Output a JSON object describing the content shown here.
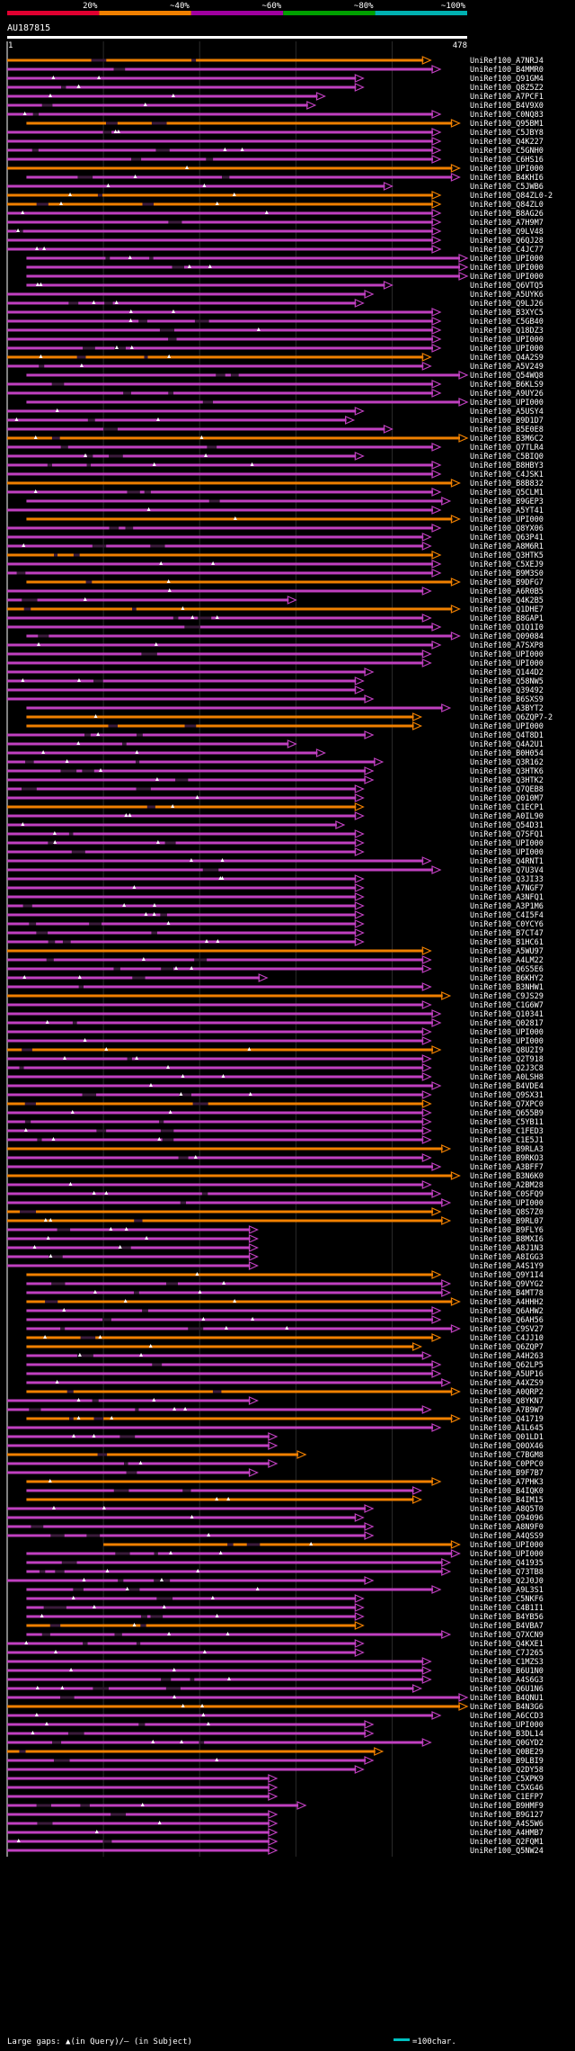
{
  "chart_data": {
    "type": "alignment-overview",
    "query_id": "AU187815",
    "query_start": "1",
    "query_end": "478",
    "query_length": 478,
    "identity_scale": {
      "ticks": [
        "20%",
        "~40%",
        "~60%",
        "~80%",
        "~100%"
      ],
      "colors": [
        "#e00030",
        "#f08000",
        "#a000a0",
        "#00a000",
        "#00b0b0"
      ]
    },
    "hit_colors": {
      "orange": "#f08000",
      "magenta": "#c040c0"
    },
    "legend": {
      "gap_text": "Large gaps: ▲(in Query)/– (in Subject)",
      "scale_text": "=100char."
    },
    "hits": [
      [
        "UniRef100_A7NRJ4",
        0,
        440,
        "o"
      ],
      [
        "UniRef100_B4MMR0",
        0,
        450,
        "m"
      ],
      [
        "UniRef100_Q91GM4",
        0,
        370,
        "m"
      ],
      [
        "UniRef100_Q8Z5Z2",
        0,
        370,
        "m"
      ],
      [
        "UniRef100_A7PCF1",
        0,
        330,
        "m"
      ],
      [
        "UniRef100_B4V9X0",
        0,
        320,
        "m"
      ],
      [
        "UniRef100_C0NQ83",
        0,
        450,
        "m"
      ],
      [
        "UniRef100_Q95BM1",
        20,
        470,
        "o"
      ],
      [
        "UniRef100_C5JBY8",
        0,
        450,
        "m"
      ],
      [
        "UniRef100_Q4K227",
        0,
        450,
        "m"
      ],
      [
        "UniRef100_C5GNH0",
        0,
        450,
        "m"
      ],
      [
        "UniRef100_C6HS16",
        0,
        450,
        "m"
      ],
      [
        "UniRef100_UPI000",
        0,
        470,
        "o"
      ],
      [
        "UniRef100_B4KHI6",
        20,
        470,
        "m"
      ],
      [
        "UniRef100_C5JWB6",
        0,
        400,
        "m"
      ],
      [
        "UniRef100_Q84ZL0-2",
        0,
        450,
        "o"
      ],
      [
        "UniRef100_Q84ZL0",
        0,
        450,
        "o"
      ],
      [
        "UniRef100_B8AG26",
        0,
        450,
        "m"
      ],
      [
        "UniRef100_A7H9M7",
        0,
        450,
        "m"
      ],
      [
        "UniRef100_Q9LV48",
        0,
        450,
        "m"
      ],
      [
        "UniRef100_Q6QJ28",
        0,
        450,
        "m"
      ],
      [
        "UniRef100_C4JC77",
        0,
        450,
        "m"
      ],
      [
        "UniRef100_UPI000",
        20,
        478,
        "m"
      ],
      [
        "UniRef100_UPI000",
        20,
        478,
        "m"
      ],
      [
        "UniRef100_UPI000",
        20,
        478,
        "m"
      ],
      [
        "UniRef100_Q6VTQ5",
        20,
        400,
        "m"
      ],
      [
        "UniRef100_A5UYK6",
        0,
        380,
        "m"
      ],
      [
        "UniRef100_Q9LJ26",
        0,
        370,
        "m"
      ],
      [
        "UniRef100_B3XYC5",
        0,
        450,
        "m"
      ],
      [
        "UniRef100_C5GB40",
        0,
        450,
        "m"
      ],
      [
        "UniRef100_Q18DZ3",
        0,
        450,
        "m"
      ],
      [
        "UniRef100_UPI000",
        0,
        450,
        "m"
      ],
      [
        "UniRef100_UPI000",
        0,
        450,
        "m"
      ],
      [
        "UniRef100_Q4A2S9",
        0,
        440,
        "o"
      ],
      [
        "UniRef100_A5V249",
        0,
        440,
        "m"
      ],
      [
        "UniRef100_Q54WQ8",
        20,
        478,
        "m"
      ],
      [
        "UniRef100_B6KLS9",
        0,
        450,
        "m"
      ],
      [
        "UniRef100_A9UY26",
        0,
        450,
        "m"
      ],
      [
        "UniRef100_UPI000",
        20,
        478,
        "m"
      ],
      [
        "UniRef100_A5USY4",
        0,
        370,
        "m"
      ],
      [
        "UniRef100_B9D1D7",
        0,
        360,
        "m"
      ],
      [
        "UniRef100_B5E0E8",
        0,
        400,
        "m"
      ],
      [
        "UniRef100_B3M6C2",
        0,
        478,
        "o"
      ],
      [
        "UniRef100_Q7TLR4",
        0,
        450,
        "m"
      ],
      [
        "UniRef100_C5BIQ0",
        0,
        370,
        "m"
      ],
      [
        "UniRef100_B8HBY3",
        0,
        450,
        "m"
      ],
      [
        "UniRef100_C4JSK1",
        0,
        450,
        "m"
      ],
      [
        "UniRef100_B8B832",
        0,
        470,
        "o"
      ],
      [
        "UniRef100_Q5CLM1",
        0,
        450,
        "m"
      ],
      [
        "UniRef100_B9GEP3",
        20,
        460,
        "m"
      ],
      [
        "UniRef100_A5YT41",
        0,
        450,
        "m"
      ],
      [
        "UniRef100_UPI000",
        20,
        470,
        "o"
      ],
      [
        "UniRef100_Q8YX06",
        0,
        450,
        "m"
      ],
      [
        "UniRef100_Q63P41",
        0,
        440,
        "m"
      ],
      [
        "UniRef100_A8M6R1",
        0,
        440,
        "m"
      ],
      [
        "UniRef100_Q3HTK5",
        0,
        450,
        "o"
      ],
      [
        "UniRef100_C5XEJ9",
        0,
        450,
        "m"
      ],
      [
        "UniRef100_B9M3S0",
        0,
        450,
        "m"
      ],
      [
        "UniRef100_B9DFG7",
        20,
        470,
        "o"
      ],
      [
        "UniRef100_A6R0B5",
        0,
        440,
        "m"
      ],
      [
        "UniRef100_Q4K2B5",
        0,
        300,
        "m"
      ],
      [
        "UniRef100_Q1DHE7",
        0,
        470,
        "o"
      ],
      [
        "UniRef100_B8GAP1",
        0,
        440,
        "m"
      ],
      [
        "UniRef100_Q1Q1I0",
        0,
        450,
        "m"
      ],
      [
        "UniRef100_Q09084",
        20,
        470,
        "m"
      ],
      [
        "UniRef100_A7SXP8",
        0,
        450,
        "m"
      ],
      [
        "UniRef100_UPI000",
        0,
        440,
        "m"
      ],
      [
        "UniRef100_UPI000",
        0,
        440,
        "m"
      ],
      [
        "UniRef100_Q144D2",
        0,
        380,
        "m"
      ],
      [
        "UniRef100_Q58NW5",
        0,
        370,
        "m"
      ],
      [
        "UniRef100_Q39492",
        0,
        370,
        "m"
      ],
      [
        "UniRef100_B6SXS9",
        0,
        380,
        "m"
      ],
      [
        "UniRef100_A3BYT2",
        20,
        460,
        "m"
      ],
      [
        "UniRef100_Q6ZQP7-2",
        20,
        430,
        "o"
      ],
      [
        "UniRef100_UPI000",
        20,
        430,
        "o"
      ],
      [
        "UniRef100_Q4T8D1",
        0,
        380,
        "m"
      ],
      [
        "UniRef100_Q4A2U1",
        0,
        300,
        "m"
      ],
      [
        "UniRef100_B0H054",
        0,
        330,
        "m"
      ],
      [
        "UniRef100_Q3R162",
        0,
        390,
        "m"
      ],
      [
        "UniRef100_Q3HTK6",
        0,
        380,
        "m"
      ],
      [
        "UniRef100_Q3HTK2",
        0,
        380,
        "m"
      ],
      [
        "UniRef100_Q7QEB8",
        0,
        370,
        "m"
      ],
      [
        "UniRef100_Q010M7",
        0,
        370,
        "m"
      ],
      [
        "UniRef100_C1ECP1",
        0,
        370,
        "o"
      ],
      [
        "UniRef100_A0IL90",
        0,
        370,
        "m"
      ],
      [
        "UniRef100_Q54D31",
        0,
        350,
        "m"
      ],
      [
        "UniRef100_Q7SFQ1",
        0,
        370,
        "m"
      ],
      [
        "UniRef100_UPI000",
        0,
        370,
        "m"
      ],
      [
        "UniRef100_UPI000",
        0,
        370,
        "m"
      ],
      [
        "UniRef100_Q4RNT1",
        0,
        440,
        "m"
      ],
      [
        "UniRef100_Q7U3V4",
        0,
        450,
        "m"
      ],
      [
        "UniRef100_Q3JI33",
        0,
        370,
        "m"
      ],
      [
        "UniRef100_A7NGF7",
        0,
        370,
        "m"
      ],
      [
        "UniRef100_A3NFQ1",
        0,
        370,
        "m"
      ],
      [
        "UniRef100_A3P1M6",
        0,
        370,
        "m"
      ],
      [
        "UniRef100_C4I5F4",
        0,
        370,
        "m"
      ],
      [
        "UniRef100_C0YCY6",
        0,
        370,
        "m"
      ],
      [
        "UniRef100_B7CT47",
        0,
        370,
        "m"
      ],
      [
        "UniRef100_B1HC61",
        0,
        370,
        "m"
      ],
      [
        "UniRef100_A5WU97",
        0,
        440,
        "o"
      ],
      [
        "UniRef100_A4LM22",
        0,
        440,
        "m"
      ],
      [
        "UniRef100_Q6S5E6",
        0,
        440,
        "m"
      ],
      [
        "UniRef100_B6KHY2",
        0,
        270,
        "m"
      ],
      [
        "UniRef100_B3NHW1",
        0,
        440,
        "m"
      ],
      [
        "UniRef100_C9JS29",
        0,
        460,
        "o"
      ],
      [
        "UniRef100_C1G6W7",
        0,
        440,
        "m"
      ],
      [
        "UniRef100_Q10341",
        0,
        450,
        "m"
      ],
      [
        "UniRef100_Q02817",
        0,
        450,
        "m"
      ],
      [
        "UniRef100_UPI000",
        0,
        440,
        "m"
      ],
      [
        "UniRef100_UPI000",
        0,
        440,
        "m"
      ],
      [
        "UniRef100_Q8U2I9",
        0,
        450,
        "o"
      ],
      [
        "UniRef100_Q2T918",
        0,
        440,
        "m"
      ],
      [
        "UniRef100_Q2J3C8",
        0,
        440,
        "m"
      ],
      [
        "UniRef100_A0LSH8",
        0,
        440,
        "m"
      ],
      [
        "UniRef100_B4VDE4",
        0,
        450,
        "m"
      ],
      [
        "UniRef100_Q9SX31",
        0,
        440,
        "m"
      ],
      [
        "UniRef100_Q7XPC0",
        0,
        440,
        "o"
      ],
      [
        "UniRef100_Q655B9",
        0,
        440,
        "m"
      ],
      [
        "UniRef100_C5YB11",
        0,
        440,
        "m"
      ],
      [
        "UniRef100_C1FED3",
        0,
        440,
        "m"
      ],
      [
        "UniRef100_C1E5J1",
        0,
        440,
        "m"
      ],
      [
        "UniRef100_B9RLA3",
        0,
        460,
        "o"
      ],
      [
        "UniRef100_B9RKO3",
        0,
        440,
        "m"
      ],
      [
        "UniRef100_A3BFF7",
        0,
        450,
        "m"
      ],
      [
        "UniRef100_B3N6K0",
        0,
        470,
        "o"
      ],
      [
        "UniRef100_A2BM28",
        0,
        440,
        "m"
      ],
      [
        "UniRef100_C0SFQ9",
        0,
        450,
        "m"
      ],
      [
        "UniRef100_UPI000",
        0,
        460,
        "m"
      ],
      [
        "UniRef100_Q8S7Z0",
        0,
        450,
        "o"
      ],
      [
        "UniRef100_B9RL07",
        0,
        460,
        "o"
      ],
      [
        "UniRef100_B9FLY6",
        0,
        260,
        "m"
      ],
      [
        "UniRef100_B8MXI6",
        0,
        260,
        "m"
      ],
      [
        "UniRef100_A8J1N3",
        0,
        260,
        "m"
      ],
      [
        "UniRef100_A8IGG3",
        0,
        260,
        "m"
      ],
      [
        "UniRef100_A4S1Y9",
        0,
        260,
        "m"
      ],
      [
        "UniRef100_Q9Y1I4",
        20,
        450,
        "o"
      ],
      [
        "UniRef100_Q9VYG2",
        20,
        460,
        "m"
      ],
      [
        "UniRef100_B4MT78",
        20,
        460,
        "m"
      ],
      [
        "UniRef100_A4HHH2",
        20,
        470,
        "o"
      ],
      [
        "UniRef100_Q6AHW2",
        20,
        450,
        "m"
      ],
      [
        "UniRef100_Q6AH56",
        20,
        450,
        "m"
      ],
      [
        "UniRef100_C9SV27",
        20,
        470,
        "m"
      ],
      [
        "UniRef100_C4JJ10",
        20,
        450,
        "o"
      ],
      [
        "UniRef100_Q6ZQP7",
        20,
        430,
        "o"
      ],
      [
        "UniRef100_A4H263",
        20,
        440,
        "m"
      ],
      [
        "UniRef100_Q62LP5",
        20,
        450,
        "m"
      ],
      [
        "UniRef100_A5UP16",
        20,
        450,
        "m"
      ],
      [
        "UniRef100_A4XZS9",
        20,
        460,
        "m"
      ],
      [
        "UniRef100_A0QRP2",
        20,
        470,
        "o"
      ],
      [
        "UniRef100_Q8YKN7",
        0,
        260,
        "m"
      ],
      [
        "UniRef100_A7B9W7",
        0,
        440,
        "m"
      ],
      [
        "UniRef100_Q41719",
        20,
        470,
        "o"
      ],
      [
        "UniRef100_A1L645",
        0,
        450,
        "m"
      ],
      [
        "UniRef100_Q01LD1",
        0,
        280,
        "m"
      ],
      [
        "UniRef100_Q0OX46",
        0,
        280,
        "m"
      ],
      [
        "UniRef100_C7BGM8",
        0,
        310,
        "o"
      ],
      [
        "UniRef100_C0PPC0",
        0,
        280,
        "m"
      ],
      [
        "UniRef100_B9F7B7",
        0,
        260,
        "m"
      ],
      [
        "UniRef100_A7PHK3",
        20,
        450,
        "o"
      ],
      [
        "UniRef100_B4IQK0",
        20,
        430,
        "m"
      ],
      [
        "UniRef100_B4IM15",
        20,
        430,
        "o"
      ],
      [
        "UniRef100_A8Q5T0",
        0,
        380,
        "m"
      ],
      [
        "UniRef100_Q94096",
        0,
        370,
        "m"
      ],
      [
        "UniRef100_A8N9F0",
        0,
        380,
        "m"
      ],
      [
        "UniRef100_A4QSS9",
        0,
        380,
        "m"
      ],
      [
        "UniRef100_UPI000",
        100,
        470,
        "o"
      ],
      [
        "UniRef100_UPI000",
        20,
        470,
        "m"
      ],
      [
        "UniRef100_Q41935",
        20,
        460,
        "m"
      ],
      [
        "UniRef100_Q73TB8",
        20,
        460,
        "m"
      ],
      [
        "UniRef100_Q2J0J0",
        0,
        380,
        "m"
      ],
      [
        "UniRef100_A9L3S1",
        20,
        450,
        "m"
      ],
      [
        "UniRef100_C5NKF6",
        20,
        370,
        "m"
      ],
      [
        "UniRef100_C4B1I1",
        20,
        370,
        "m"
      ],
      [
        "UniRef100_B4YB56",
        20,
        370,
        "m"
      ],
      [
        "UniRef100_B4VBA7",
        20,
        370,
        "o"
      ],
      [
        "UniRef100_Q7XCN9",
        20,
        460,
        "m"
      ],
      [
        "UniRef100_Q4KXE1",
        0,
        370,
        "m"
      ],
      [
        "UniRef100_C7J265",
        0,
        370,
        "m"
      ],
      [
        "UniRef100_C1MZS3",
        0,
        440,
        "m"
      ],
      [
        "UniRef100_B6U1N0",
        0,
        440,
        "m"
      ],
      [
        "UniRef100_A4S6G3",
        0,
        440,
        "m"
      ],
      [
        "UniRef100_Q6U1N6",
        0,
        430,
        "m"
      ],
      [
        "UniRef100_B4QNU1",
        0,
        478,
        "m"
      ],
      [
        "UniRef100_B4N3G6",
        0,
        478,
        "o"
      ],
      [
        "UniRef100_A6CCD3",
        0,
        450,
        "m"
      ],
      [
        "UniRef100_UPI000",
        0,
        380,
        "m"
      ],
      [
        "UniRef100_B3DL14",
        0,
        380,
        "m"
      ],
      [
        "UniRef100_Q0GYD2",
        0,
        440,
        "m"
      ],
      [
        "UniRef100_Q0BE29",
        0,
        390,
        "o"
      ],
      [
        "UniRef100_B9LBI9",
        0,
        380,
        "m"
      ],
      [
        "UniRef100_Q2DY58",
        0,
        370,
        "m"
      ],
      [
        "UniRef100_C5XPK9",
        0,
        280,
        "m"
      ],
      [
        "UniRef100_C5XG46",
        0,
        280,
        "m"
      ],
      [
        "UniRef100_C1EFP7",
        0,
        280,
        "m"
      ],
      [
        "UniRef100_B9HMF9",
        0,
        310,
        "m"
      ],
      [
        "UniRef100_B9G127",
        0,
        280,
        "m"
      ],
      [
        "UniRef100_A4S5W6",
        0,
        280,
        "m"
      ],
      [
        "UniRef100_A4HMB7",
        0,
        280,
        "m"
      ],
      [
        "UniRef100_Q2FQM1",
        0,
        280,
        "m"
      ],
      [
        "UniRef100_Q5NW24",
        0,
        280,
        "m"
      ]
    ]
  }
}
